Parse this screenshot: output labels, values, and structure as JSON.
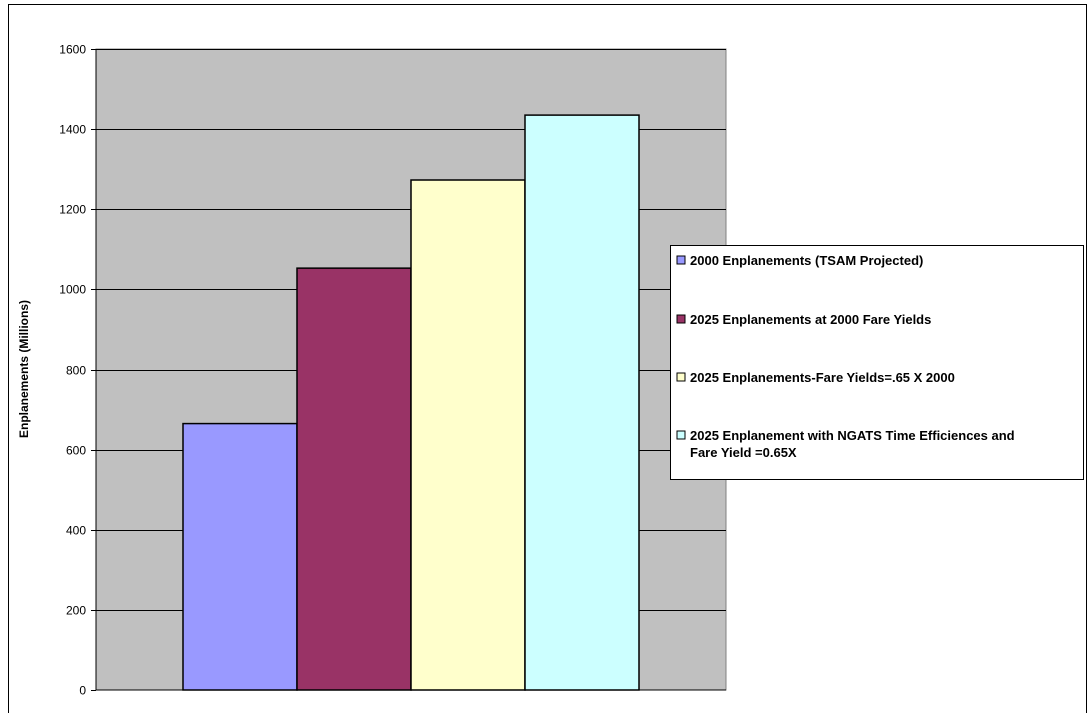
{
  "chart_data": {
    "type": "bar",
    "title": "",
    "xlabel": "",
    "ylabel": "Enplanements (Millions)",
    "ylim": [
      0,
      1600
    ],
    "yticks": [
      0,
      200,
      400,
      600,
      800,
      1000,
      1200,
      1400,
      1600
    ],
    "grid": true,
    "legend_position": "right",
    "plot_background": "#c0c0c0",
    "series": [
      {
        "name": "2000 Enplanements (TSAM Projected)",
        "value": 665,
        "color": "#9999ff"
      },
      {
        "name": "2025 Enplanements at 2000 Fare Yields",
        "value": 1053,
        "color": "#993366"
      },
      {
        "name": "2025 Enplanements-Fare Yields=.65 X 2000",
        "value": 1273,
        "color": "#ffffcc"
      },
      {
        "name": "2025 Enplanement with NGATS Time Efficiences and Fare Yield =0.65X",
        "value": 1435,
        "color": "#ccffff"
      }
    ]
  }
}
